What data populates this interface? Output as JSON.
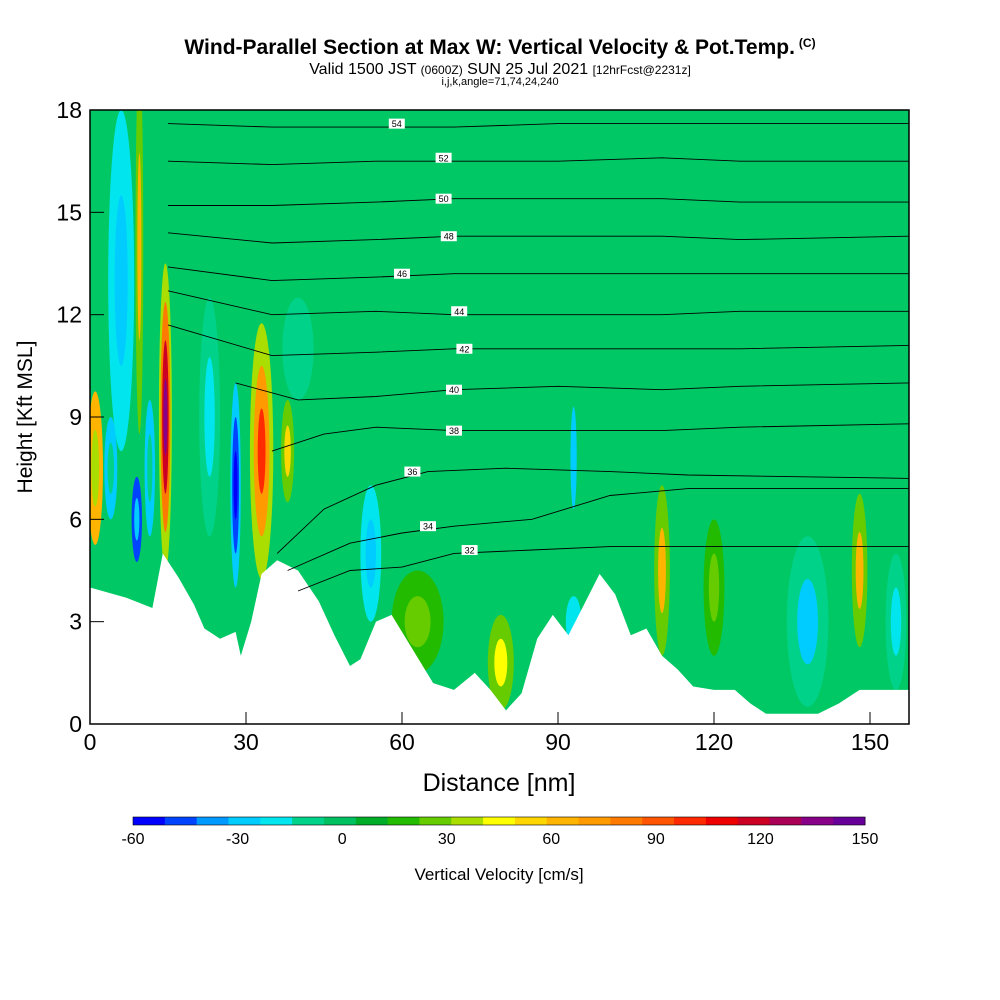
{
  "header": {
    "title": "Wind-Parallel Section at Max W: Vertical Velocity & Pot.Temp.",
    "copyright_mark": "(C)",
    "valid_prefix": "Valid 1500 JST",
    "valid_utc": "(0600Z)",
    "valid_date": "SUN 25 Jul 2021",
    "forecast_note": "[12hrFcst@2231z]",
    "indices": "i,j,k,angle=71,74,24,240"
  },
  "colorbar": {
    "label": "Vertical Velocity [cm/s]",
    "tick_labels": [
      "-60",
      "-30",
      "0",
      "30",
      "60",
      "90",
      "120",
      "150"
    ],
    "colors": [
      "#0000ff",
      "#0044ff",
      "#0099ff",
      "#00ccff",
      "#00e5ee",
      "#00d28a",
      "#00c060",
      "#00ad28",
      "#22bb00",
      "#66cc00",
      "#aadd00",
      "#ffff00",
      "#ffd700",
      "#ffb400",
      "#ff9a00",
      "#ff7a00",
      "#ff5500",
      "#ff2a00",
      "#ee0000",
      "#cc0022",
      "#aa0055",
      "#880088",
      "#660099"
    ],
    "background_color": "#00c864"
  },
  "chart_data": {
    "type": "heatmap",
    "title": "Wind-Parallel Section at Max W: Vertical Velocity & Pot.Temp.",
    "xlabel": "Distance [nm]",
    "ylabel": "Height [Kft MSL]",
    "xlim": [
      0,
      157.5
    ],
    "ylim": [
      0,
      18
    ],
    "x_ticks": [
      0,
      30,
      60,
      90,
      120,
      150
    ],
    "y_ticks": [
      0,
      3,
      6,
      9,
      12,
      15,
      18
    ],
    "terrain": [
      [
        0,
        4
      ],
      [
        7,
        3.7
      ],
      [
        12,
        3.4
      ],
      [
        14,
        5
      ],
      [
        17,
        4.3
      ],
      [
        20,
        3.5
      ],
      [
        22,
        2.8
      ],
      [
        25,
        2.5
      ],
      [
        28,
        2.7
      ],
      [
        29,
        2
      ],
      [
        31,
        3
      ],
      [
        33,
        4.4
      ],
      [
        36,
        4.8
      ],
      [
        40,
        4.5
      ],
      [
        44,
        3.6
      ],
      [
        47,
        2.6
      ],
      [
        50,
        1.7
      ],
      [
        52,
        1.9
      ],
      [
        55,
        3
      ],
      [
        58,
        3.2
      ],
      [
        62,
        2.2
      ],
      [
        66,
        1.2
      ],
      [
        70,
        1
      ],
      [
        74,
        1.5
      ],
      [
        77,
        1
      ],
      [
        80,
        0.4
      ],
      [
        83,
        0.9
      ],
      [
        86,
        2.5
      ],
      [
        89,
        3.2
      ],
      [
        92,
        2.6
      ],
      [
        95,
        3.5
      ],
      [
        98,
        4.4
      ],
      [
        101,
        3.8
      ],
      [
        104,
        2.6
      ],
      [
        107,
        2.8
      ],
      [
        110,
        2
      ],
      [
        113,
        1.6
      ],
      [
        116,
        1.1
      ],
      [
        120,
        1
      ],
      [
        124,
        1
      ],
      [
        127,
        0.6
      ],
      [
        130,
        0.3
      ],
      [
        135,
        0.3
      ],
      [
        140,
        0.3
      ],
      [
        144,
        0.6
      ],
      [
        148,
        1
      ],
      [
        152,
        1
      ],
      [
        157.5,
        1
      ]
    ],
    "vertical_velocity_cells": [
      {
        "x": 1,
        "y": 7.5,
        "w": 3,
        "h": 4.5,
        "values": [
          60,
          40
        ]
      },
      {
        "x": 4,
        "y": 7.5,
        "w": 2.5,
        "h": 3,
        "values": [
          -25,
          -10
        ]
      },
      {
        "x": 6,
        "y": 13,
        "w": 5,
        "h": 10,
        "values": [
          -15,
          -25
        ]
      },
      {
        "x": 9.5,
        "y": 14,
        "w": 1.5,
        "h": 11,
        "values": [
          30,
          60
        ]
      },
      {
        "x": 9,
        "y": 6,
        "w": 2,
        "h": 2.5,
        "values": [
          -50,
          -30
        ]
      },
      {
        "x": 11.5,
        "y": 7.5,
        "w": 2,
        "h": 4,
        "values": [
          -25,
          -10
        ]
      },
      {
        "x": 14.5,
        "y": 9,
        "w": 2.5,
        "h": 9,
        "values": [
          40,
          80,
          120,
          140
        ]
      },
      {
        "x": 23,
        "y": 9,
        "w": 4,
        "h": 7,
        "values": [
          -10,
          -20
        ]
      },
      {
        "x": 28,
        "y": 7,
        "w": 2,
        "h": 6,
        "values": [
          -30,
          -50,
          -60
        ]
      },
      {
        "x": 33,
        "y": 8,
        "w": 4.5,
        "h": 7.5,
        "values": [
          40,
          70,
          100
        ]
      },
      {
        "x": 38,
        "y": 8,
        "w": 2.5,
        "h": 3,
        "values": [
          30,
          50
        ]
      },
      {
        "x": 40,
        "y": 11,
        "w": 6,
        "h": 3,
        "values": [
          -10
        ]
      },
      {
        "x": 54,
        "y": 5,
        "w": 4,
        "h": 4,
        "values": [
          -20,
          -30
        ]
      },
      {
        "x": 63,
        "y": 3,
        "w": 10,
        "h": 3,
        "values": [
          15,
          30
        ]
      },
      {
        "x": 79,
        "y": 1.8,
        "w": 5,
        "h": 2.8,
        "values": [
          30,
          45
        ]
      },
      {
        "x": 93,
        "y": 7.8,
        "w": 1.2,
        "h": 3,
        "values": [
          -25
        ]
      },
      {
        "x": 93,
        "y": 3,
        "w": 3,
        "h": 1.5,
        "values": [
          -20
        ]
      },
      {
        "x": 110,
        "y": 4.5,
        "w": 3,
        "h": 5,
        "values": [
          30,
          60
        ]
      },
      {
        "x": 120,
        "y": 4,
        "w": 4,
        "h": 4,
        "values": [
          15,
          30
        ]
      },
      {
        "x": 138,
        "y": 3,
        "w": 8,
        "h": 5,
        "values": [
          -10,
          -25
        ]
      },
      {
        "x": 148,
        "y": 4.5,
        "w": 3,
        "h": 4.5,
        "values": [
          30,
          60
        ]
      },
      {
        "x": 155,
        "y": 3,
        "w": 4,
        "h": 4,
        "values": [
          -10,
          -20
        ]
      }
    ],
    "potential_temperature_contours": [
      {
        "label": "32",
        "points": [
          [
            40,
            3.9
          ],
          [
            50,
            4.5
          ],
          [
            60,
            4.6
          ],
          [
            70,
            5
          ],
          [
            85,
            5.1
          ],
          [
            100,
            5.2
          ],
          [
            157.5,
            5.2
          ]
        ],
        "label_at": [
          73,
          5.1
        ]
      },
      {
        "label": "34",
        "points": [
          [
            38,
            4.5
          ],
          [
            50,
            5.3
          ],
          [
            60,
            5.6
          ],
          [
            70,
            5.8
          ],
          [
            85,
            6
          ],
          [
            100,
            6.7
          ],
          [
            115,
            6.9
          ],
          [
            157.5,
            6.9
          ]
        ],
        "label_at": [
          65,
          5.8
        ]
      },
      {
        "label": "36",
        "points": [
          [
            36,
            5
          ],
          [
            45,
            6.3
          ],
          [
            55,
            7
          ],
          [
            65,
            7.4
          ],
          [
            80,
            7.5
          ],
          [
            100,
            7.4
          ],
          [
            115,
            7.3
          ],
          [
            157.5,
            7.2
          ]
        ],
        "label_at": [
          62,
          7.4
        ]
      },
      {
        "label": "38",
        "points": [
          [
            35,
            8
          ],
          [
            45,
            8.5
          ],
          [
            55,
            8.7
          ],
          [
            70,
            8.6
          ],
          [
            90,
            8.6
          ],
          [
            110,
            8.6
          ],
          [
            125,
            8.7
          ],
          [
            157.5,
            8.8
          ]
        ],
        "label_at": [
          70,
          8.6
        ]
      },
      {
        "label": "40",
        "points": [
          [
            28,
            10
          ],
          [
            40,
            9.5
          ],
          [
            55,
            9.6
          ],
          [
            70,
            9.8
          ],
          [
            90,
            9.9
          ],
          [
            110,
            9.8
          ],
          [
            125,
            9.9
          ],
          [
            157.5,
            10
          ]
        ],
        "label_at": [
          70,
          9.8
        ]
      },
      {
        "label": "42",
        "points": [
          [
            15,
            11.7
          ],
          [
            35,
            10.8
          ],
          [
            55,
            10.9
          ],
          [
            70,
            11
          ],
          [
            90,
            11
          ],
          [
            110,
            11
          ],
          [
            125,
            11
          ],
          [
            157.5,
            11.1
          ]
        ],
        "label_at": [
          72,
          11
        ]
      },
      {
        "label": "44",
        "points": [
          [
            15,
            12.7
          ],
          [
            35,
            12
          ],
          [
            55,
            12.1
          ],
          [
            70,
            12
          ],
          [
            90,
            12
          ],
          [
            110,
            12
          ],
          [
            125,
            12.1
          ],
          [
            157.5,
            12.1
          ]
        ],
        "label_at": [
          71,
          12.1
        ]
      },
      {
        "label": "46",
        "points": [
          [
            15,
            13.4
          ],
          [
            35,
            13
          ],
          [
            55,
            13.1
          ],
          [
            70,
            13.2
          ],
          [
            90,
            13.2
          ],
          [
            110,
            13.2
          ],
          [
            125,
            13.2
          ],
          [
            157.5,
            13.2
          ]
        ],
        "label_at": [
          60,
          13.2
        ]
      },
      {
        "label": "48",
        "points": [
          [
            15,
            14.4
          ],
          [
            35,
            14.1
          ],
          [
            55,
            14.2
          ],
          [
            70,
            14.3
          ],
          [
            90,
            14.3
          ],
          [
            110,
            14.3
          ],
          [
            125,
            14.2
          ],
          [
            157.5,
            14.3
          ]
        ],
        "label_at": [
          69,
          14.3
        ]
      },
      {
        "label": "50",
        "points": [
          [
            15,
            15.2
          ],
          [
            35,
            15.2
          ],
          [
            55,
            15.3
          ],
          [
            70,
            15.4
          ],
          [
            90,
            15.4
          ],
          [
            110,
            15.4
          ],
          [
            125,
            15.3
          ],
          [
            157.5,
            15.3
          ]
        ],
        "label_at": [
          68,
          15.4
        ]
      },
      {
        "label": "52",
        "points": [
          [
            15,
            16.5
          ],
          [
            35,
            16.4
          ],
          [
            55,
            16.5
          ],
          [
            70,
            16.5
          ],
          [
            90,
            16.5
          ],
          [
            110,
            16.6
          ],
          [
            125,
            16.5
          ],
          [
            157.5,
            16.5
          ]
        ],
        "label_at": [
          68,
          16.6
        ]
      },
      {
        "label": "54",
        "points": [
          [
            15,
            17.6
          ],
          [
            35,
            17.5
          ],
          [
            55,
            17.5
          ],
          [
            70,
            17.5
          ],
          [
            90,
            17.6
          ],
          [
            110,
            17.6
          ],
          [
            125,
            17.6
          ],
          [
            157.5,
            17.6
          ]
        ],
        "label_at": [
          59,
          17.6
        ]
      }
    ]
  }
}
